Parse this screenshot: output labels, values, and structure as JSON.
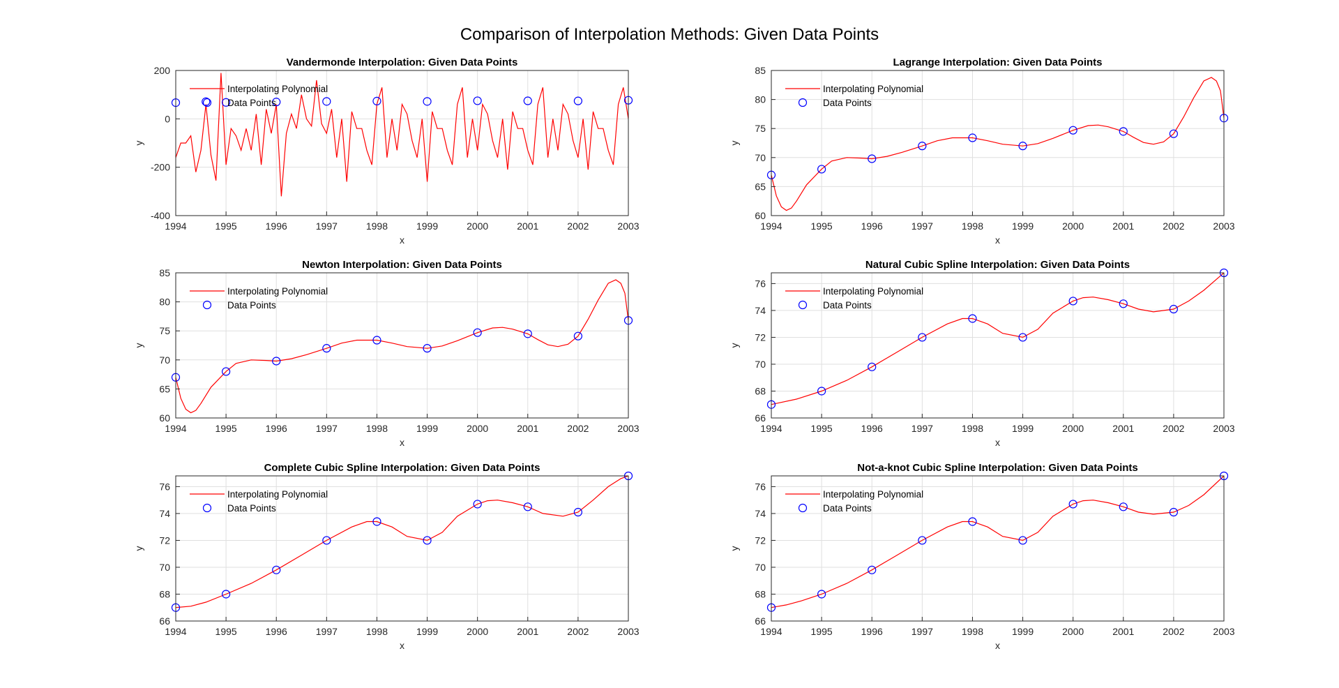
{
  "figure_title": "Comparison of Interpolation Methods: Given Data Points",
  "colors": {
    "curve": "#ff0000",
    "points": "#0000ff",
    "grid": "#dfdfdf",
    "axes": "#262626"
  },
  "chart_data": [
    {
      "type": "line",
      "title": "Vandermonde Interpolation: Given Data Points",
      "xlabel": "x",
      "ylabel": "y",
      "xlim": [
        1994,
        2003
      ],
      "ylim": [
        -400,
        200
      ],
      "xticks": [
        1994,
        1995,
        1996,
        1997,
        1998,
        1999,
        2000,
        2001,
        2002,
        2003
      ],
      "yticks": [
        -400,
        -200,
        0,
        200
      ],
      "grid": true,
      "legend_position": "top-left",
      "legend": [
        "Interpolating Polynomial",
        "Data Points"
      ],
      "data_points": {
        "x": [
          1994,
          1994.6,
          1995,
          1996,
          1997,
          1998,
          1999,
          2000,
          2001,
          2002,
          2003
        ],
        "y": [
          67,
          71,
          68,
          69.8,
          72,
          73.4,
          72,
          74.7,
          74.5,
          74.1,
          76.8
        ]
      },
      "curve": {
        "x": [
          1994,
          1994.1,
          1994.2,
          1994.3,
          1994.4,
          1994.5,
          1994.6,
          1994.7,
          1994.8,
          1994.9,
          1995,
          1995.1,
          1995.2,
          1995.3,
          1995.4,
          1995.5,
          1995.6,
          1995.7,
          1995.8,
          1995.9,
          1996,
          1996.1,
          1996.2,
          1996.3,
          1996.4,
          1996.5,
          1996.6,
          1996.7,
          1996.8,
          1996.9,
          1997,
          1997.1,
          1997.2,
          1997.3,
          1997.4,
          1997.5,
          1997.6,
          1997.7,
          1997.8,
          1997.9,
          1998,
          1998.1,
          1998.2,
          1998.3,
          1998.4,
          1998.5,
          1998.6,
          1998.7,
          1998.8,
          1998.9,
          1999,
          1999.1,
          1999.2,
          1999.3,
          1999.4,
          1999.5,
          1999.6,
          1999.7,
          1999.8,
          1999.9,
          2000,
          2000.1,
          2000.2,
          2000.3,
          2000.4,
          2000.5,
          2000.6,
          2000.7,
          2000.8,
          2000.9,
          2001,
          2001.1,
          2001.2,
          2001.3,
          2001.4,
          2001.5,
          2001.6,
          2001.7,
          2001.8,
          2001.9,
          2002,
          2002.1,
          2002.2,
          2002.3,
          2002.4,
          2002.5,
          2002.6,
          2002.7,
          2002.8,
          2002.9,
          2003
        ],
        "y": [
          -160,
          -100,
          -100,
          -70,
          -220,
          -130,
          60,
          -150,
          -255,
          190,
          -190,
          -40,
          -70,
          -130,
          -40,
          -130,
          20,
          -190,
          40,
          -60,
          60,
          -320,
          -60,
          20,
          -40,
          100,
          0,
          -30,
          160,
          -20,
          -60,
          40,
          -160,
          0,
          -260,
          30,
          -40,
          -40,
          -130,
          -190,
          60,
          130,
          -160,
          0,
          -130,
          60,
          20,
          -90,
          -160,
          0,
          -260,
          30,
          -40,
          -40,
          -130,
          -190,
          60,
          130,
          -160,
          0,
          -130,
          60,
          20,
          -90,
          -160,
          0,
          -210,
          30,
          -40,
          -40,
          -130,
          -190,
          60,
          130,
          -160,
          0,
          -130,
          60,
          20,
          -90,
          -160,
          0,
          -210,
          30,
          -40,
          -40,
          -130,
          -190,
          60,
          130,
          0
        ]
      }
    },
    {
      "type": "line",
      "title": "Lagrange Interpolation: Given Data Points",
      "xlabel": "x",
      "ylabel": "y",
      "xlim": [
        1994,
        2003
      ],
      "ylim": [
        60,
        85
      ],
      "xticks": [
        1994,
        1995,
        1996,
        1997,
        1998,
        1999,
        2000,
        2001,
        2002,
        2003
      ],
      "yticks": [
        60,
        65,
        70,
        75,
        80,
        85
      ],
      "grid": true,
      "legend_position": "top-left",
      "legend": [
        "Interpolating Polynomial",
        "Data Points"
      ],
      "data_points": {
        "x": [
          1994,
          1995,
          1996,
          1997,
          1998,
          1999,
          2000,
          2001,
          2002,
          2003
        ],
        "y": [
          67,
          68,
          69.8,
          72,
          73.4,
          72,
          74.7,
          74.5,
          74.1,
          76.8
        ]
      },
      "curve": {
        "x": [
          1994,
          1994.1,
          1994.2,
          1994.3,
          1994.4,
          1994.5,
          1994.7,
          1995,
          1995.2,
          1995.5,
          1995.8,
          1996,
          1996.3,
          1996.6,
          1997,
          1997.3,
          1997.6,
          1998,
          1998.3,
          1998.6,
          1999,
          1999.3,
          1999.6,
          2000,
          2000.3,
          2000.5,
          2000.7,
          2001,
          2001.2,
          2001.4,
          2001.6,
          2001.8,
          2002,
          2002.2,
          2002.4,
          2002.6,
          2002.75,
          2002.85,
          2002.93,
          2003
        ],
        "y": [
          67,
          63.4,
          61.5,
          60.9,
          61.3,
          62.5,
          65.3,
          68,
          69.4,
          70,
          69.9,
          69.8,
          70.2,
          70.9,
          72,
          72.9,
          73.4,
          73.4,
          72.9,
          72.3,
          72,
          72.4,
          73.3,
          74.7,
          75.5,
          75.6,
          75.3,
          74.5,
          73.5,
          72.6,
          72.3,
          72.7,
          74.1,
          77,
          80.3,
          83.2,
          83.8,
          83.2,
          81.5,
          76.8
        ]
      }
    },
    {
      "type": "line",
      "title": "Newton Interpolation: Given Data Points",
      "xlabel": "x",
      "ylabel": "y",
      "xlim": [
        1994,
        2003
      ],
      "ylim": [
        60,
        85
      ],
      "xticks": [
        1994,
        1995,
        1996,
        1997,
        1998,
        1999,
        2000,
        2001,
        2002,
        2003
      ],
      "yticks": [
        60,
        65,
        70,
        75,
        80,
        85
      ],
      "grid": true,
      "legend_position": "top-left",
      "legend": [
        "Interpolating Polynomial",
        "Data Points"
      ],
      "data_points": {
        "x": [
          1994,
          1995,
          1996,
          1997,
          1998,
          1999,
          2000,
          2001,
          2002,
          2003
        ],
        "y": [
          67,
          68,
          69.8,
          72,
          73.4,
          72,
          74.7,
          74.5,
          74.1,
          76.8
        ]
      },
      "curve": {
        "x": [
          1994,
          1994.1,
          1994.2,
          1994.3,
          1994.4,
          1994.5,
          1994.7,
          1995,
          1995.2,
          1995.5,
          1995.8,
          1996,
          1996.3,
          1996.6,
          1997,
          1997.3,
          1997.6,
          1998,
          1998.3,
          1998.6,
          1999,
          1999.3,
          1999.6,
          2000,
          2000.3,
          2000.5,
          2000.7,
          2001,
          2001.2,
          2001.4,
          2001.6,
          2001.8,
          2002,
          2002.2,
          2002.4,
          2002.6,
          2002.75,
          2002.85,
          2002.93,
          2003
        ],
        "y": [
          67,
          63.4,
          61.5,
          60.9,
          61.3,
          62.5,
          65.3,
          68,
          69.4,
          70,
          69.9,
          69.8,
          70.2,
          70.9,
          72,
          72.9,
          73.4,
          73.4,
          72.9,
          72.3,
          72,
          72.4,
          73.3,
          74.7,
          75.5,
          75.6,
          75.3,
          74.5,
          73.5,
          72.6,
          72.3,
          72.7,
          74.1,
          77,
          80.3,
          83.2,
          83.8,
          83.2,
          81.5,
          76.8
        ]
      }
    },
    {
      "type": "line",
      "title": "Natural Cubic Spline Interpolation: Given Data Points",
      "xlabel": "x",
      "ylabel": "y",
      "xlim": [
        1994,
        2003
      ],
      "ylim": [
        66,
        76.8
      ],
      "xticks": [
        1994,
        1995,
        1996,
        1997,
        1998,
        1999,
        2000,
        2001,
        2002,
        2003
      ],
      "yticks": [
        66,
        68,
        70,
        72,
        74,
        76
      ],
      "grid": true,
      "legend_position": "top-left",
      "legend": [
        "Interpolating Polynomial",
        "Data Points"
      ],
      "data_points": {
        "x": [
          1994,
          1995,
          1996,
          1997,
          1998,
          1999,
          2000,
          2001,
          2002,
          2003
        ],
        "y": [
          67,
          68,
          69.8,
          72,
          73.4,
          72,
          74.7,
          74.5,
          74.1,
          76.8
        ]
      },
      "curve": {
        "x": [
          1994,
          1994.5,
          1995,
          1995.5,
          1996,
          1996.5,
          1997,
          1997.5,
          1997.8,
          1998,
          1998.3,
          1998.6,
          1999,
          1999.3,
          1999.6,
          2000,
          2000.2,
          2000.4,
          2000.7,
          2001,
          2001.3,
          2001.6,
          2002,
          2002.3,
          2002.6,
          2003
        ],
        "y": [
          67,
          67.4,
          68,
          68.8,
          69.8,
          70.9,
          72,
          73,
          73.4,
          73.4,
          73,
          72.3,
          72,
          72.6,
          73.8,
          74.7,
          74.95,
          75,
          74.8,
          74.5,
          74.1,
          73.9,
          74.1,
          74.7,
          75.5,
          76.8
        ]
      }
    },
    {
      "type": "line",
      "title": "Complete Cubic Spline Interpolation: Given Data Points",
      "xlabel": "x",
      "ylabel": "y",
      "xlim": [
        1994,
        2003
      ],
      "ylim": [
        66,
        76.8
      ],
      "xticks": [
        1994,
        1995,
        1996,
        1997,
        1998,
        1999,
        2000,
        2001,
        2002,
        2003
      ],
      "yticks": [
        66,
        68,
        70,
        72,
        74,
        76
      ],
      "grid": true,
      "legend_position": "top-left",
      "legend": [
        "Interpolating Polynomial",
        "Data Points"
      ],
      "data_points": {
        "x": [
          1994,
          1995,
          1996,
          1997,
          1998,
          1999,
          2000,
          2001,
          2002,
          2003
        ],
        "y": [
          67,
          68,
          69.8,
          72,
          73.4,
          72,
          74.7,
          74.5,
          74.1,
          76.8
        ]
      },
      "curve": {
        "x": [
          1994,
          1994.3,
          1994.6,
          1995,
          1995.5,
          1996,
          1996.5,
          1997,
          1997.5,
          1997.8,
          1998,
          1998.3,
          1998.6,
          1999,
          1999.3,
          1999.6,
          2000,
          2000.2,
          2000.4,
          2000.7,
          2001,
          2001.3,
          2001.7,
          2002,
          2002.3,
          2002.6,
          2002.85,
          2003
        ],
        "y": [
          67,
          67.1,
          67.4,
          68,
          68.8,
          69.8,
          70.9,
          72,
          73,
          73.4,
          73.4,
          73,
          72.3,
          72,
          72.6,
          73.8,
          74.7,
          74.95,
          75,
          74.8,
          74.5,
          74,
          73.8,
          74.1,
          75,
          76,
          76.6,
          76.8
        ]
      }
    },
    {
      "type": "line",
      "title": "Not-a-knot Cubic Spline Interpolation: Given Data Points",
      "xlabel": "x",
      "ylabel": "y",
      "xlim": [
        1994,
        2003
      ],
      "ylim": [
        66,
        76.8
      ],
      "xticks": [
        1994,
        1995,
        1996,
        1997,
        1998,
        1999,
        2000,
        2001,
        2002,
        2003
      ],
      "yticks": [
        66,
        68,
        70,
        72,
        74,
        76
      ],
      "grid": true,
      "legend_position": "top-left",
      "legend": [
        "Interpolating Polynomial",
        "Data Points"
      ],
      "data_points": {
        "x": [
          1994,
          1995,
          1996,
          1997,
          1998,
          1999,
          2000,
          2001,
          2002,
          2003
        ],
        "y": [
          67,
          68,
          69.8,
          72,
          73.4,
          72,
          74.7,
          74.5,
          74.1,
          76.8
        ]
      },
      "curve": {
        "x": [
          1994,
          1994.3,
          1994.6,
          1995,
          1995.5,
          1996,
          1996.5,
          1997,
          1997.5,
          1997.8,
          1998,
          1998.3,
          1998.6,
          1999,
          1999.3,
          1999.6,
          2000,
          2000.2,
          2000.4,
          2000.7,
          2001,
          2001.3,
          2001.6,
          2002,
          2002.3,
          2002.6,
          2003
        ],
        "y": [
          67,
          67.2,
          67.5,
          68,
          68.8,
          69.8,
          70.9,
          72,
          73,
          73.4,
          73.4,
          73,
          72.3,
          72,
          72.6,
          73.8,
          74.7,
          74.95,
          75,
          74.8,
          74.5,
          74.1,
          73.95,
          74.1,
          74.6,
          75.4,
          76.8
        ]
      }
    }
  ]
}
